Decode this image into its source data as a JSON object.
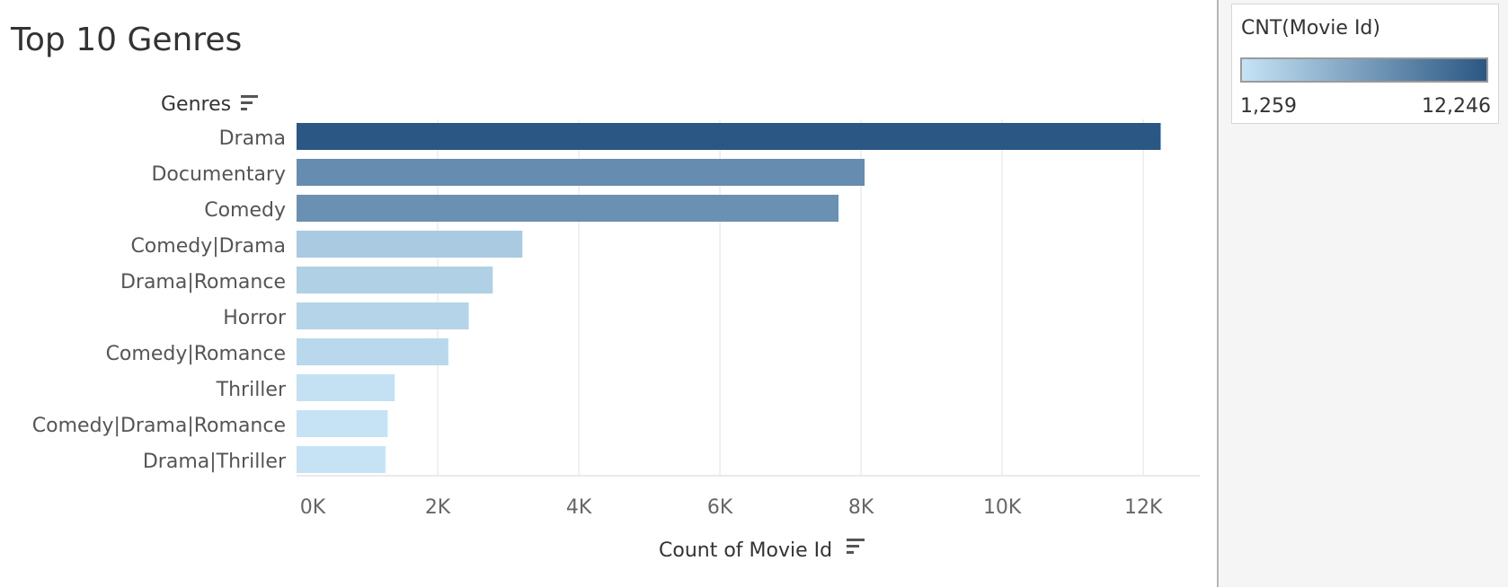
{
  "title": "Top 10 Genres",
  "legend": {
    "title": "CNT(Movie Id)",
    "min_label": "1,259",
    "max_label": "12,246",
    "color_low": "#c6e3f5",
    "color_high": "#2a5783"
  },
  "chart_data": {
    "type": "bar",
    "orientation": "horizontal",
    "title": "Top 10 Genres",
    "ylabel": "Genres",
    "xlabel": "Count of Movie Id",
    "categories": [
      "Drama",
      "Documentary",
      "Comedy",
      "Comedy|Drama",
      "Drama|Romance",
      "Horror",
      "Comedy|Romance",
      "Thriller",
      "Comedy|Drama|Romance",
      "Drama|Thriller"
    ],
    "values": [
      12246,
      8050,
      7680,
      3200,
      2780,
      2440,
      2150,
      1390,
      1290,
      1259
    ],
    "xlim": [
      0,
      12800
    ],
    "xticks": [
      0,
      2000,
      4000,
      6000,
      8000,
      10000,
      12000
    ],
    "xtick_labels": [
      "0K",
      "2K",
      "4K",
      "6K",
      "8K",
      "10K",
      "12K"
    ],
    "grid": "vertical",
    "color_scale": {
      "min": 1259,
      "max": 12246,
      "low": "#c6e3f5",
      "high": "#2a5783"
    }
  }
}
